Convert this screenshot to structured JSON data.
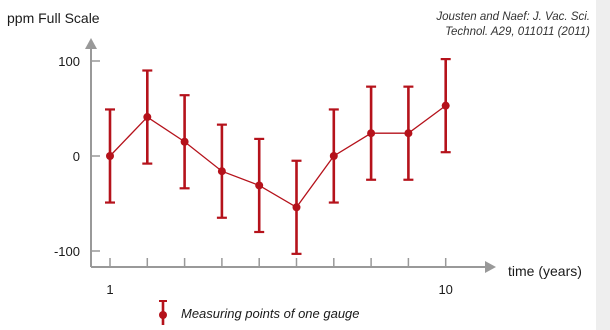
{
  "chart_data": {
    "type": "scatter",
    "ylabel": "ppm Full Scale",
    "xlabel": "time (years)",
    "citation": "Jousten and Naef: J. Vac. Sci. Technol. A29, 011011 (2011)",
    "yticks": [
      100,
      0,
      -100
    ],
    "ytick_labels": [
      "100",
      "0",
      "-100"
    ],
    "xtick_labels_shown": [
      {
        "value": 1,
        "label": "1"
      },
      {
        "value": 10,
        "label": "10"
      }
    ],
    "xlim": [
      1,
      10
    ],
    "ylim": [
      -115,
      120
    ],
    "grid": false,
    "legend_position": "bottom",
    "series": [
      {
        "name": "Measuring points of one gauge",
        "color": "#b5121b",
        "x": [
          1,
          2,
          3,
          4,
          5,
          6,
          7,
          8,
          9,
          10
        ],
        "y": [
          0,
          41,
          15,
          -16,
          -31,
          -54,
          0,
          24,
          24,
          53
        ],
        "error": [
          49,
          49,
          49,
          49,
          49,
          49,
          49,
          49,
          49,
          49
        ]
      }
    ]
  },
  "colors": {
    "axis": "#999999",
    "series": "#b5121b",
    "sidebar": "#eeeeee"
  }
}
